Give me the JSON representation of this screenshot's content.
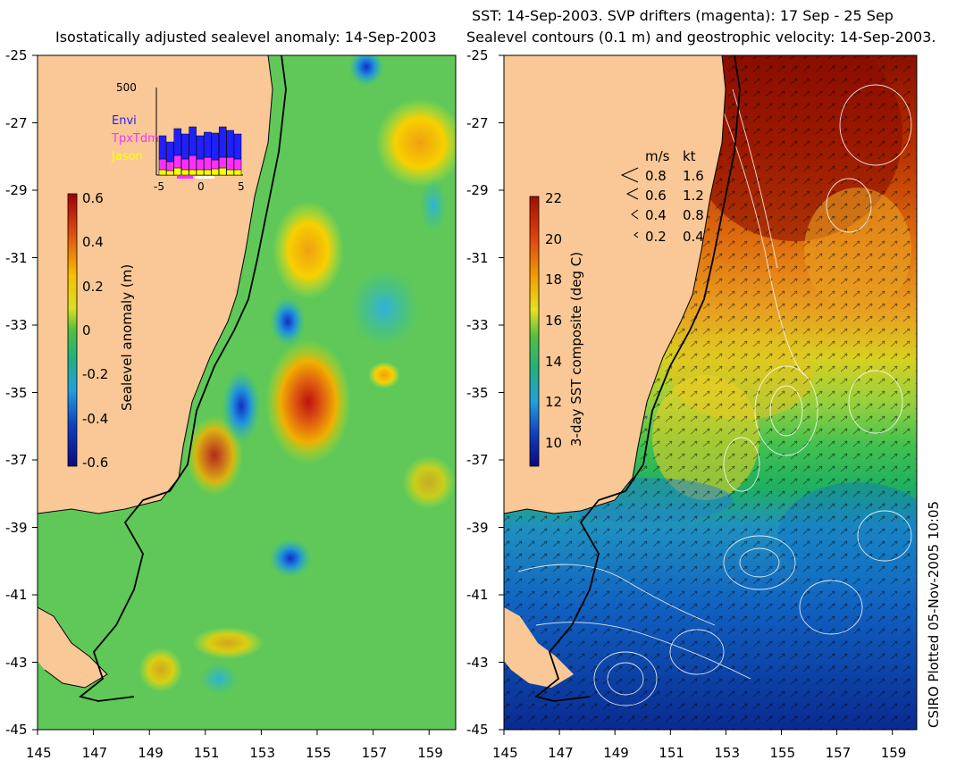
{
  "left_map": {
    "title": "Isostatically adjusted sealevel anomaly: 14-Sep-2003",
    "y_ticks": [
      "-25",
      "-27",
      "-29",
      "-31",
      "-33",
      "-35",
      "-37",
      "-39",
      "-41",
      "-43",
      "-45"
    ],
    "x_ticks": [
      "145",
      "147",
      "149",
      "151",
      "153",
      "155",
      "157",
      "159"
    ],
    "colorbar": {
      "label": "Sealevel anomaly (m)",
      "ticks": [
        "0.6",
        "0.4",
        "0.2",
        "0",
        "-0.2",
        "-0.4",
        "-0.6"
      ]
    },
    "inset": {
      "ymax_label": "500",
      "legend": [
        "Envi",
        "TpxTdm",
        "Jason"
      ],
      "legend_colors": [
        "#2020ff",
        "#ff30ff",
        "#ffff00"
      ],
      "x_ticks": [
        "-5",
        "0",
        "5"
      ]
    }
  },
  "right_map": {
    "title_line1": "SST: 14-Sep-2003. SVP drifters (magenta): 17 Sep - 25 Sep",
    "title_line2": "Sealevel contours (0.1 m) and geostrophic velocity: 14-Sep-2003.",
    "y_ticks": [
      "-25",
      "-27",
      "-29",
      "-31",
      "-33",
      "-35",
      "-37",
      "-39",
      "-41",
      "-43",
      "-45"
    ],
    "x_ticks": [
      "145",
      "147",
      "149",
      "151",
      "153",
      "155",
      "157",
      "159"
    ],
    "colorbar": {
      "label": "3-day SST composite (deg C)",
      "ticks": [
        "22",
        "20",
        "18",
        "16",
        "14",
        "12",
        "10"
      ]
    },
    "velocity_key": {
      "header_ms": "m/s",
      "header_kt": "kt",
      "rows": [
        {
          "ms": "0.8",
          "kt": "1.6"
        },
        {
          "ms": "0.6",
          "kt": "1.2"
        },
        {
          "ms": "0.4",
          "kt": "0.8"
        },
        {
          "ms": "0.2",
          "kt": "0.4"
        }
      ]
    }
  },
  "credit": "CSIRO Plotted 05-Nov-2005 10:05",
  "colors": {
    "land": "#f9c896",
    "coast_line": "#000000"
  }
}
